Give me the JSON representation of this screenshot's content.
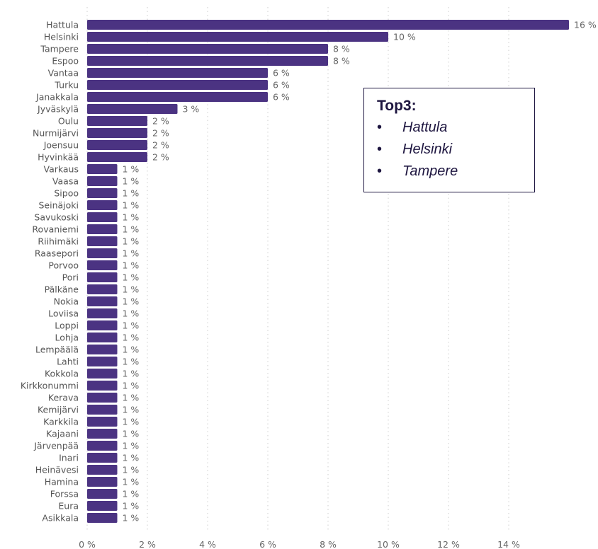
{
  "chart_data": {
    "type": "bar",
    "orientation": "horizontal",
    "categories": [
      "Hattula",
      "Helsinki",
      "Tampere",
      "Espoo",
      "Vantaa",
      "Turku",
      "Janakkala",
      "Jyväskylä",
      "Oulu",
      "Nurmijärvi",
      "Joensuu",
      "Hyvinkää",
      "Varkaus",
      "Vaasa",
      "Sipoo",
      "Seinäjoki",
      "Savukoski",
      "Rovaniemi",
      "Riihimäki",
      "Raasepori",
      "Porvoo",
      "Pori",
      "Pälkäne",
      "Nokia",
      "Loviisa",
      "Loppi",
      "Lohja",
      "Lempäälä",
      "Lahti",
      "Kokkola",
      "Kirkkonummi",
      "Kerava",
      "Kemijärvi",
      "Karkkila",
      "Kajaani",
      "Järvenpää",
      "Inari",
      "Heinävesi",
      "Hamina",
      "Forssa",
      "Eura",
      "Asikkala"
    ],
    "values": [
      16,
      10,
      8,
      8,
      6,
      6,
      6,
      3,
      2,
      2,
      2,
      2,
      1,
      1,
      1,
      1,
      1,
      1,
      1,
      1,
      1,
      1,
      1,
      1,
      1,
      1,
      1,
      1,
      1,
      1,
      1,
      1,
      1,
      1,
      1,
      1,
      1,
      1,
      1,
      1,
      1,
      1
    ],
    "value_labels": [
      "16 %",
      "10 %",
      "8 %",
      "8 %",
      "6 %",
      "6 %",
      "6 %",
      "3 %",
      "2 %",
      "2 %",
      "2 %",
      "2 %",
      "1 %",
      "1 %",
      "1 %",
      "1 %",
      "1 %",
      "1 %",
      "1 %",
      "1 %",
      "1 %",
      "1 %",
      "1 %",
      "1 %",
      "1 %",
      "1 %",
      "1 %",
      "1 %",
      "1 %",
      "1 %",
      "1 %",
      "1 %",
      "1 %",
      "1 %",
      "1 %",
      "1 %",
      "1 %",
      "1 %",
      "1 %",
      "1 %",
      "1 %",
      "1 %"
    ],
    "x_ticks": [
      0,
      2,
      4,
      6,
      8,
      10,
      12,
      14
    ],
    "x_tick_labels": [
      "0 %",
      "2 %",
      "4 %",
      "6 %",
      "8 %",
      "10 %",
      "12 %",
      "14 %"
    ],
    "xlim": [
      0,
      16.5
    ],
    "grid": "vertical-dotted",
    "bar_color": "#4b3382",
    "title": "",
    "xlabel": "",
    "ylabel": ""
  },
  "annotation": {
    "title": "Top3:",
    "bullet": "•",
    "items": [
      "Hattula",
      "Helsinki",
      "Tampere"
    ],
    "text_color": "#1e1640",
    "border_color": "#1e1640"
  }
}
